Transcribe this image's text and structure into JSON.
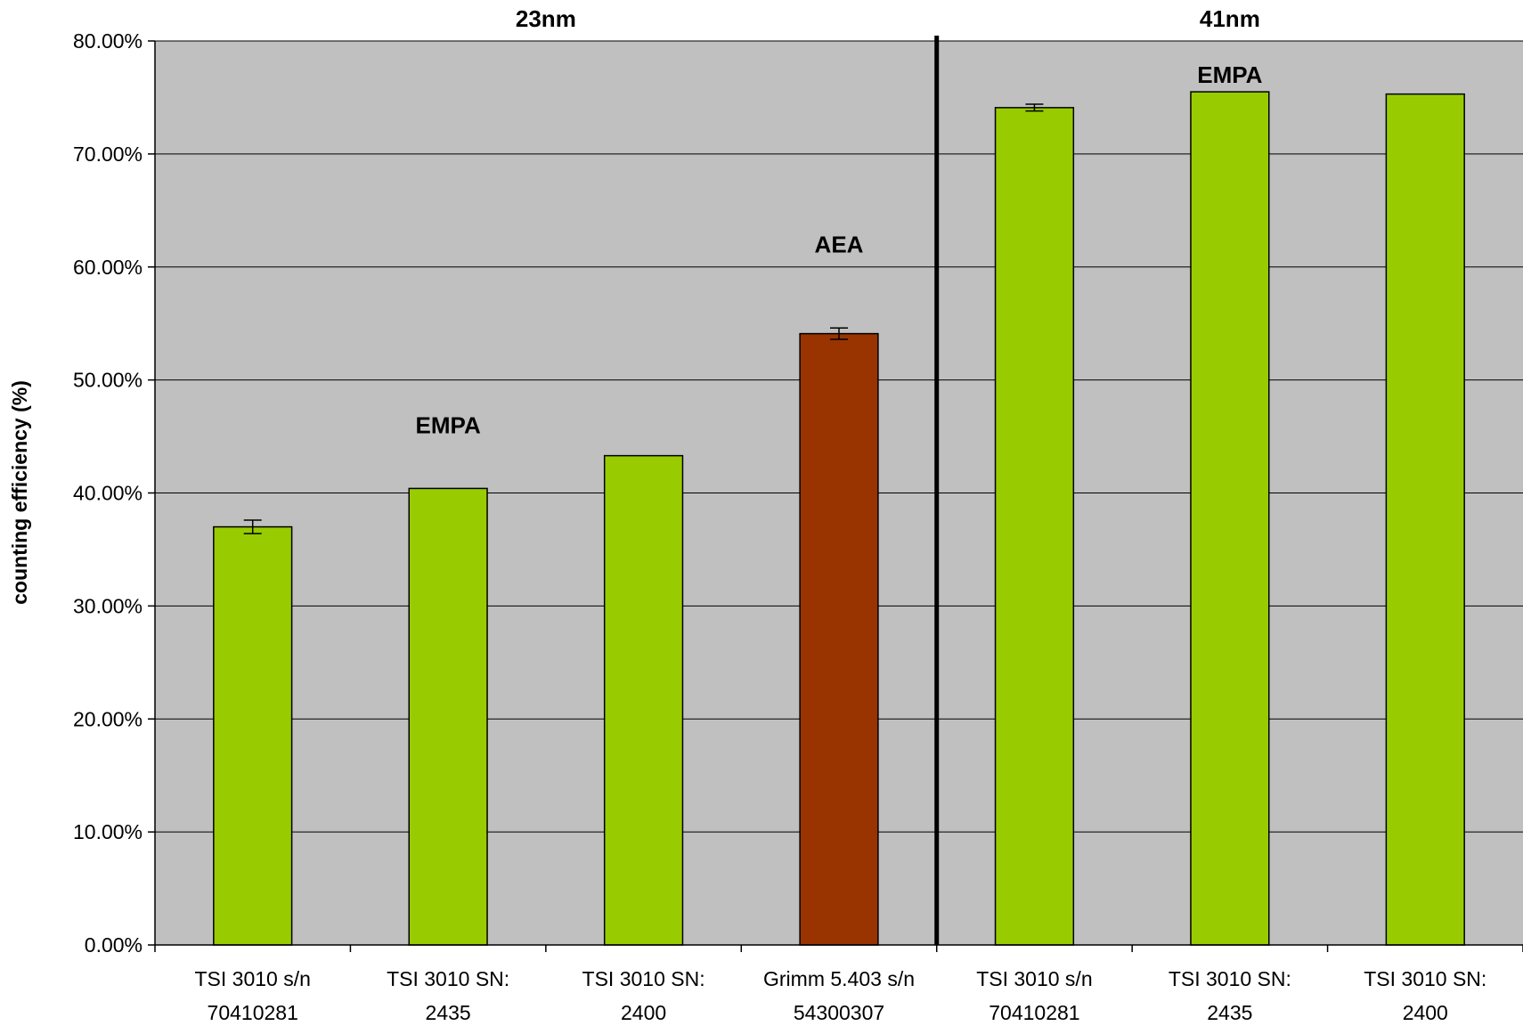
{
  "chart_data": {
    "type": "bar",
    "ylabel": "counting efficiency (%)",
    "xlabel": "",
    "ylim": [
      0,
      0.8
    ],
    "ytick_step": 0.1,
    "ytick_labels": [
      "0.00%",
      "10.00%",
      "20.00%",
      "30.00%",
      "40.00%",
      "50.00%",
      "60.00%",
      "70.00%",
      "80.00%"
    ],
    "grid": true,
    "legend": "none",
    "categories": [
      [
        "TSI 3010 s/n",
        "70410281"
      ],
      [
        "TSI 3010 SN:",
        "2435"
      ],
      [
        "TSI 3010 SN:",
        "2400"
      ],
      [
        "Grimm 5.403 s/n",
        "54300307"
      ],
      [
        "TSI 3010 s/n",
        "70410281"
      ],
      [
        "TSI 3010 SN:",
        "2435"
      ],
      [
        "TSI 3010 SN:",
        "2400"
      ]
    ],
    "values": [
      0.37,
      0.404,
      0.433,
      0.541,
      0.741,
      0.755,
      0.753
    ],
    "error": [
      0.006,
      null,
      null,
      0.005,
      0.003,
      null,
      null
    ],
    "bar_colors": [
      "#99cc00",
      "#99cc00",
      "#99cc00",
      "#993300",
      "#99cc00",
      "#99cc00",
      "#99cc00"
    ],
    "group_divider_after_index": 3,
    "group_labels": [
      {
        "text": "23nm",
        "center_index": 1.5
      },
      {
        "text": "41nm",
        "center_index": 5
      }
    ],
    "annotations": [
      {
        "text": "EMPA",
        "x_index": 1,
        "y": 0.46
      },
      {
        "text": "AEA",
        "x_index": 3,
        "y": 0.62
      },
      {
        "text": "EMPA",
        "x_index": 5,
        "y": 0.77
      }
    ],
    "colors": {
      "plot_background": "#c0c0c0",
      "bar_green": "#99cc00",
      "bar_brown": "#993300",
      "gridline": "#000000"
    }
  }
}
